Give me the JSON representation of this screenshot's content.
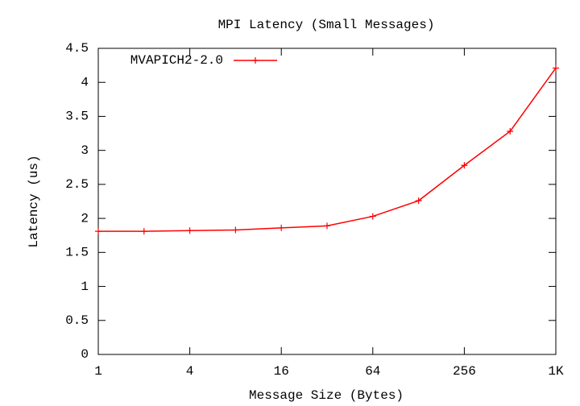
{
  "chart_data": {
    "type": "line",
    "title": "MPI Latency (Small Messages)",
    "x_label": "Message Size (Bytes)",
    "y_label": "Latency (us)",
    "x": [
      1,
      2,
      4,
      8,
      16,
      32,
      64,
      128,
      256,
      512,
      1024
    ],
    "series": [
      {
        "name": "MVAPICH2-2.0",
        "color": "#ff0000",
        "values": [
          1.81,
          1.81,
          1.82,
          1.83,
          1.86,
          1.89,
          2.03,
          2.26,
          2.78,
          3.28,
          4.21
        ]
      }
    ],
    "xlim": [
      1,
      1024
    ],
    "x_log_base": 2,
    "xticks": [
      1,
      4,
      16,
      64,
      256,
      {
        "value": 1024,
        "label": "1K"
      }
    ],
    "ylim": [
      0,
      4.5
    ],
    "yticks": [
      0,
      0.5,
      1,
      1.5,
      2,
      2.5,
      3,
      3.5,
      4,
      4.5
    ],
    "grid": false,
    "legend": "top-left"
  }
}
